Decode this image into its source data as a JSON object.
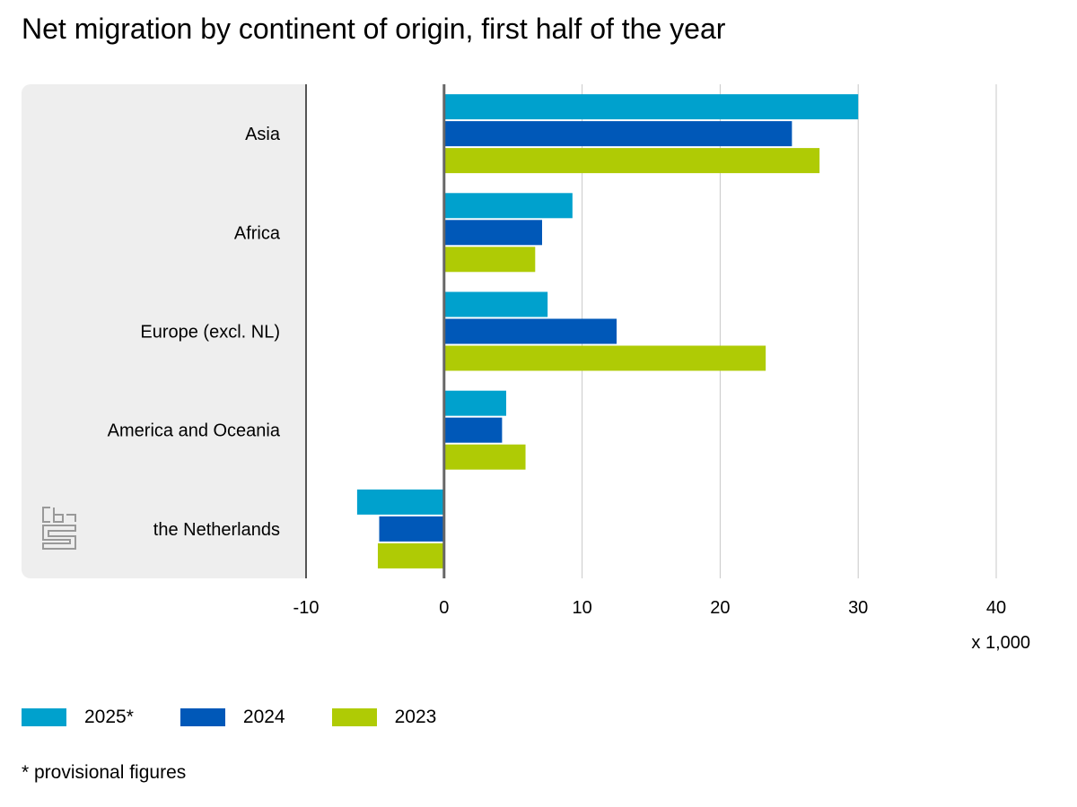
{
  "chart_data": {
    "type": "bar",
    "orientation": "horizontal",
    "title": "Net migration by continent of origin, first half of the year",
    "categories": [
      "Asia",
      "Africa",
      "Europe (excl. NL)",
      "America and Oceania",
      "the Netherlands"
    ],
    "series": [
      {
        "name": "2025*",
        "color": "#00a1cd",
        "values": [
          30.0,
          9.3,
          7.5,
          4.5,
          -6.3
        ]
      },
      {
        "name": "2024",
        "color": "#0058b8",
        "values": [
          25.2,
          7.1,
          12.5,
          4.2,
          -4.7
        ]
      },
      {
        "name": "2023",
        "color": "#afcb05",
        "values": [
          27.2,
          6.6,
          23.3,
          5.9,
          -4.8
        ]
      }
    ],
    "xlim": [
      -10,
      40
    ],
    "xticks": [
      -10,
      0,
      10,
      20,
      30,
      40
    ],
    "xtick_labels": [
      "-10",
      "0",
      "10",
      "20",
      "30",
      "40"
    ],
    "unit_label": "x 1,000",
    "grid": true,
    "legend_position": "bottom-left",
    "footnote": "* provisional figures"
  }
}
